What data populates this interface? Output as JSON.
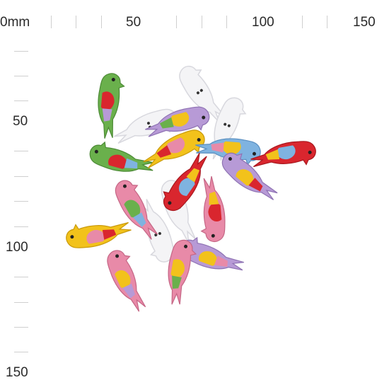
{
  "ruler": {
    "unit": "mm",
    "origin_label": "0",
    "top_labels": [
      "50",
      "100",
      "150"
    ],
    "left_labels": [
      "50",
      "100",
      "150"
    ]
  },
  "photo": {
    "subject_icon": "parrot-button-icon",
    "colors": {
      "red": "#d9262e",
      "green": "#6ab04c",
      "yellow": "#f2c21b",
      "pink": "#e88aa8",
      "blue": "#7fb3e0",
      "purple": "#b79ad6",
      "white": "#f4f4f6"
    }
  }
}
